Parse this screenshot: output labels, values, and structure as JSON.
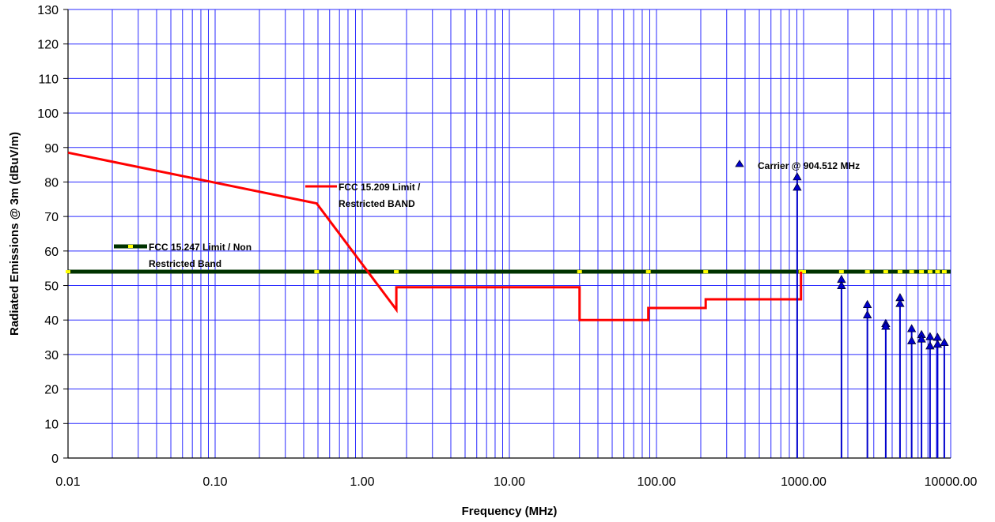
{
  "chart_data": {
    "type": "line",
    "xlabel": "Frequency (MHz)",
    "ylabel": "Radiated Emissions @ 3m (dBuV/m)",
    "x_scale": "log",
    "xlim": [
      0.01,
      10000
    ],
    "ylim": [
      0,
      130
    ],
    "x_tick_labels": [
      "0.01",
      "0.10",
      "1.00",
      "10.00",
      "100.00",
      "1000.00",
      "10000.00"
    ],
    "y_ticks": [
      0,
      10,
      20,
      30,
      40,
      50,
      60,
      70,
      80,
      90,
      100,
      110,
      120,
      130
    ],
    "grid": true,
    "series": [
      {
        "name": "FCC 15.209 Limit / Restricted BAND",
        "color": "#ff0000",
        "points": [
          [
            0.01,
            88.5
          ],
          [
            0.49,
            73.8
          ],
          [
            1.705,
            43.0
          ],
          [
            1.705,
            49.5
          ],
          [
            30,
            49.5
          ],
          [
            30,
            40.0
          ],
          [
            88,
            40.0
          ],
          [
            88,
            43.5
          ],
          [
            216,
            43.5
          ],
          [
            216,
            46.0
          ],
          [
            960,
            46.0
          ],
          [
            960,
            54.0
          ]
        ]
      },
      {
        "name": "FCC 15.247 Limit / Non Restricted Band",
        "color": "#003300",
        "marker_color": "#ffff00",
        "points": [
          [
            0.01,
            54
          ],
          [
            10000,
            54
          ]
        ],
        "markers_x": [
          0.01,
          0.49,
          1.705,
          30,
          88,
          216,
          960,
          1000,
          1808,
          2714,
          3618,
          4523,
          5427,
          6332,
          7236,
          8141,
          9045
        ]
      },
      {
        "name": "Carrier @ 904.512 MHz",
        "color": "#0000cc",
        "marker": "triangle",
        "points": [
          [
            904.512,
            81.5
          ],
          [
            904.512,
            78.5
          ],
          [
            1809,
            51.8
          ],
          [
            1809,
            50.0
          ],
          [
            2714,
            44.5
          ],
          [
            2714,
            41.5
          ],
          [
            3618,
            39.0
          ],
          [
            3618,
            38.2
          ],
          [
            4523,
            46.5
          ],
          [
            4523,
            44.8
          ],
          [
            5427,
            37.5
          ],
          [
            5427,
            34.0
          ],
          [
            6332,
            35.8
          ],
          [
            6332,
            34.5
          ],
          [
            7236,
            35.2
          ],
          [
            7236,
            32.5
          ],
          [
            8141,
            35.0
          ],
          [
            8141,
            33.0
          ],
          [
            9045,
            33.5
          ]
        ]
      }
    ]
  }
}
